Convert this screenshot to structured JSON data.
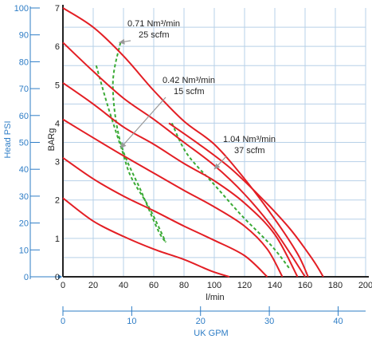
{
  "chart_data": {
    "type": "line",
    "title": "",
    "x_axis": {
      "label": "l/min",
      "range": [
        0,
        200
      ],
      "ticks": [
        "0",
        "20",
        "40",
        "60",
        "80",
        "100",
        "120",
        "140",
        "160",
        "180",
        "200"
      ]
    },
    "y_axis_left": {
      "label": "BARg",
      "range": [
        0,
        7
      ],
      "ticks": [
        "0",
        "1",
        "2",
        "3",
        "4",
        "5",
        "6",
        "7"
      ]
    },
    "y_axis_head": {
      "label": "Head PSI",
      "range": [
        0,
        100
      ],
      "ticks": [
        "0",
        "10",
        "20",
        "30",
        "40",
        "50",
        "60",
        "70",
        "80",
        "90",
        "100"
      ]
    },
    "x_axis_secondary": {
      "label": "UK GPM",
      "range": [
        0,
        44
      ],
      "ticks": [
        "0",
        "10",
        "20",
        "30",
        "40"
      ]
    },
    "grid": true,
    "colors": {
      "curve": "#e31e24",
      "air_line": "#3aaa35",
      "grid": "#b7d0e8",
      "blue_axis": "#2e7dc6",
      "annotation_arrow": "#999999"
    },
    "series": [
      {
        "x": [
          0,
          20,
          40,
          60,
          80,
          98,
          110
        ],
        "y": [
          2.05,
          1.45,
          1.05,
          0.72,
          0.45,
          0.15,
          0.0
        ]
      },
      {
        "x": [
          0,
          20,
          40,
          60,
          80,
          100,
          120,
          135
        ],
        "y": [
          3.1,
          2.55,
          2.1,
          1.72,
          1.32,
          0.95,
          0.55,
          0.0
        ]
      },
      {
        "x": [
          0,
          20,
          40,
          60,
          80,
          100,
          120,
          135,
          145
        ],
        "y": [
          4.1,
          3.62,
          3.15,
          2.7,
          2.25,
          1.82,
          1.32,
          0.72,
          0.0
        ]
      },
      {
        "x": [
          0,
          20,
          40,
          60,
          80,
          100,
          120,
          140,
          155
        ],
        "y": [
          5.05,
          4.5,
          3.9,
          3.45,
          2.95,
          2.5,
          1.92,
          1.1,
          0.0
        ]
      },
      {
        "x": [
          0,
          20,
          40,
          60,
          80,
          100,
          120,
          140,
          160
        ],
        "y": [
          6.1,
          5.35,
          4.65,
          4.1,
          3.5,
          2.9,
          2.15,
          1.2,
          0.0
        ]
      },
      {
        "x": [
          0,
          20,
          40,
          60,
          80,
          100,
          120,
          140,
          155,
          162
        ],
        "y": [
          7.0,
          6.5,
          5.75,
          4.85,
          4.05,
          3.45,
          2.55,
          1.5,
          0.6,
          0.0
        ]
      },
      {
        "x": [
          70,
          90,
          110,
          130,
          150,
          165,
          172
        ],
        "y": [
          4.0,
          3.45,
          2.85,
          2.1,
          1.25,
          0.45,
          0.0
        ]
      }
    ],
    "air_consumption_lines": [
      {
        "x": [
          38,
          33,
          38,
          52,
          63,
          68
        ],
        "y": [
          6.1,
          5.0,
          3.5,
          2.2,
          1.2,
          0.9
        ]
      },
      {
        "x": [
          22,
          30,
          39,
          45,
          57,
          68
        ],
        "y": [
          5.5,
          4.4,
          3.3,
          2.6,
          1.8,
          0.9
        ]
      },
      {
        "x": [
          72,
          82,
          100,
          118,
          138,
          150
        ],
        "y": [
          4.0,
          3.2,
          2.4,
          1.6,
          0.8,
          0.2
        ]
      }
    ],
    "annotations": [
      {
        "line1": "0.71 Nm³/min",
        "line2": "25 scfm",
        "target": {
          "x": 37,
          "y": 6.1
        }
      },
      {
        "line1": "0.42 Nm³/min",
        "line2": "15 scfm",
        "target": {
          "x": 38,
          "y": 3.35
        }
      },
      {
        "line1": "1.04 Nm³/min",
        "line2": "37 scfm",
        "target": {
          "x": 100,
          "y": 2.8
        }
      }
    ]
  }
}
